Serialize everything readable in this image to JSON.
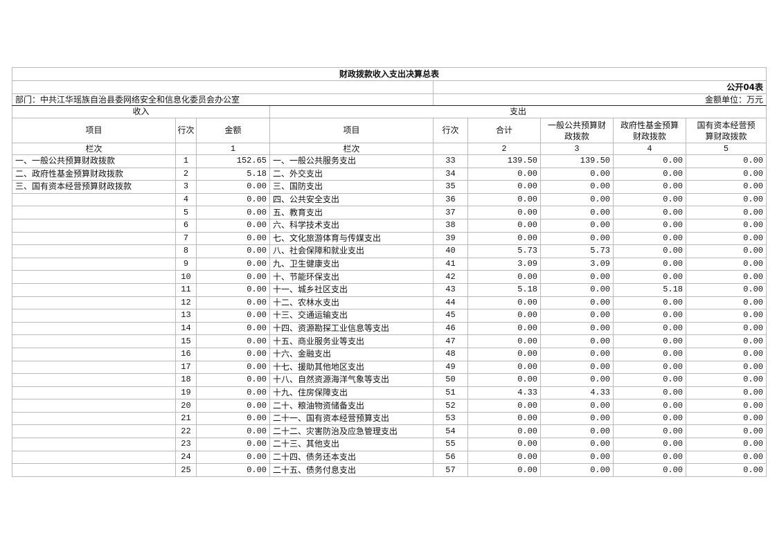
{
  "title": "财政拨款收入支出决算总表",
  "form_code": "公开04表",
  "department": "部门：中共江华瑶族自治县委网络安全和信息化委员会办公室",
  "unit": "金额单位：万元",
  "income_header": "收入",
  "expense_header": "支出",
  "columns": {
    "income_item": "项目",
    "income_line": "行次",
    "income_amount": "金额",
    "expense_item": "项目",
    "expense_line": "行次",
    "total": "合计",
    "general_budget": "一般公共预算财政拨款",
    "gov_fund": "政府性基金预算财政拨款",
    "state_capital": "国有资本经营预算财政拨款"
  },
  "column_index_row": {
    "label_income": "栏次",
    "amount": "1",
    "label_expense": "栏次",
    "total": "2",
    "general_budget": "3",
    "gov_fund": "4",
    "state_capital": "5"
  },
  "rows": [
    [
      "一、一般公共预算财政拨款",
      "1",
      "152.65",
      "一、一般公共服务支出",
      "33",
      "139.50",
      "139.50",
      "0.00",
      "0.00"
    ],
    [
      "二、政府性基金预算财政拨款",
      "2",
      "5.18",
      "二、外交支出",
      "34",
      "0.00",
      "0.00",
      "0.00",
      "0.00"
    ],
    [
      "三、国有资本经营预算财政拨款",
      "3",
      "0.00",
      "三、国防支出",
      "35",
      "0.00",
      "0.00",
      "0.00",
      "0.00"
    ],
    [
      "",
      "4",
      "0.00",
      "四、公共安全支出",
      "36",
      "0.00",
      "0.00",
      "0.00",
      "0.00"
    ],
    [
      "",
      "5",
      "0.00",
      "五、教育支出",
      "37",
      "0.00",
      "0.00",
      "0.00",
      "0.00"
    ],
    [
      "",
      "6",
      "0.00",
      "六、科学技术支出",
      "38",
      "0.00",
      "0.00",
      "0.00",
      "0.00"
    ],
    [
      "",
      "7",
      "0.00",
      "七、文化旅游体育与传媒支出",
      "39",
      "0.00",
      "0.00",
      "0.00",
      "0.00"
    ],
    [
      "",
      "8",
      "0.00",
      "八、社会保障和就业支出",
      "40",
      "5.73",
      "5.73",
      "0.00",
      "0.00"
    ],
    [
      "",
      "9",
      "0.00",
      "九、卫生健康支出",
      "41",
      "3.09",
      "3.09",
      "0.00",
      "0.00"
    ],
    [
      "",
      "10",
      "0.00",
      "十、节能环保支出",
      "42",
      "0.00",
      "0.00",
      "0.00",
      "0.00"
    ],
    [
      "",
      "11",
      "0.00",
      "十一、城乡社区支出",
      "43",
      "5.18",
      "0.00",
      "5.18",
      "0.00"
    ],
    [
      "",
      "12",
      "0.00",
      "十二、农林水支出",
      "44",
      "0.00",
      "0.00",
      "0.00",
      "0.00"
    ],
    [
      "",
      "13",
      "0.00",
      "十三、交通运输支出",
      "45",
      "0.00",
      "0.00",
      "0.00",
      "0.00"
    ],
    [
      "",
      "14",
      "0.00",
      "十四、资源勘探工业信息等支出",
      "46",
      "0.00",
      "0.00",
      "0.00",
      "0.00"
    ],
    [
      "",
      "15",
      "0.00",
      "十五、商业服务业等支出",
      "47",
      "0.00",
      "0.00",
      "0.00",
      "0.00"
    ],
    [
      "",
      "16",
      "0.00",
      "十六、金融支出",
      "48",
      "0.00",
      "0.00",
      "0.00",
      "0.00"
    ],
    [
      "",
      "17",
      "0.00",
      "十七、援助其他地区支出",
      "49",
      "0.00",
      "0.00",
      "0.00",
      "0.00"
    ],
    [
      "",
      "18",
      "0.00",
      "十八、自然资源海洋气象等支出",
      "50",
      "0.00",
      "0.00",
      "0.00",
      "0.00"
    ],
    [
      "",
      "19",
      "0.00",
      "十九、住房保障支出",
      "51",
      "4.33",
      "4.33",
      "0.00",
      "0.00"
    ],
    [
      "",
      "20",
      "0.00",
      "二十、粮油物资储备支出",
      "52",
      "0.00",
      "0.00",
      "0.00",
      "0.00"
    ],
    [
      "",
      "21",
      "0.00",
      "二十一、国有资本经营预算支出",
      "53",
      "0.00",
      "0.00",
      "0.00",
      "0.00"
    ],
    [
      "",
      "22",
      "0.00",
      "二十二、灾害防治及应急管理支出",
      "54",
      "0.00",
      "0.00",
      "0.00",
      "0.00"
    ],
    [
      "",
      "23",
      "0.00",
      "二十三、其他支出",
      "55",
      "0.00",
      "0.00",
      "0.00",
      "0.00"
    ],
    [
      "",
      "24",
      "0.00",
      "二十四、债务还本支出",
      "56",
      "0.00",
      "0.00",
      "0.00",
      "0.00"
    ],
    [
      "",
      "25",
      "0.00",
      "二十五、债务付息支出",
      "57",
      "0.00",
      "0.00",
      "0.00",
      "0.00"
    ]
  ]
}
